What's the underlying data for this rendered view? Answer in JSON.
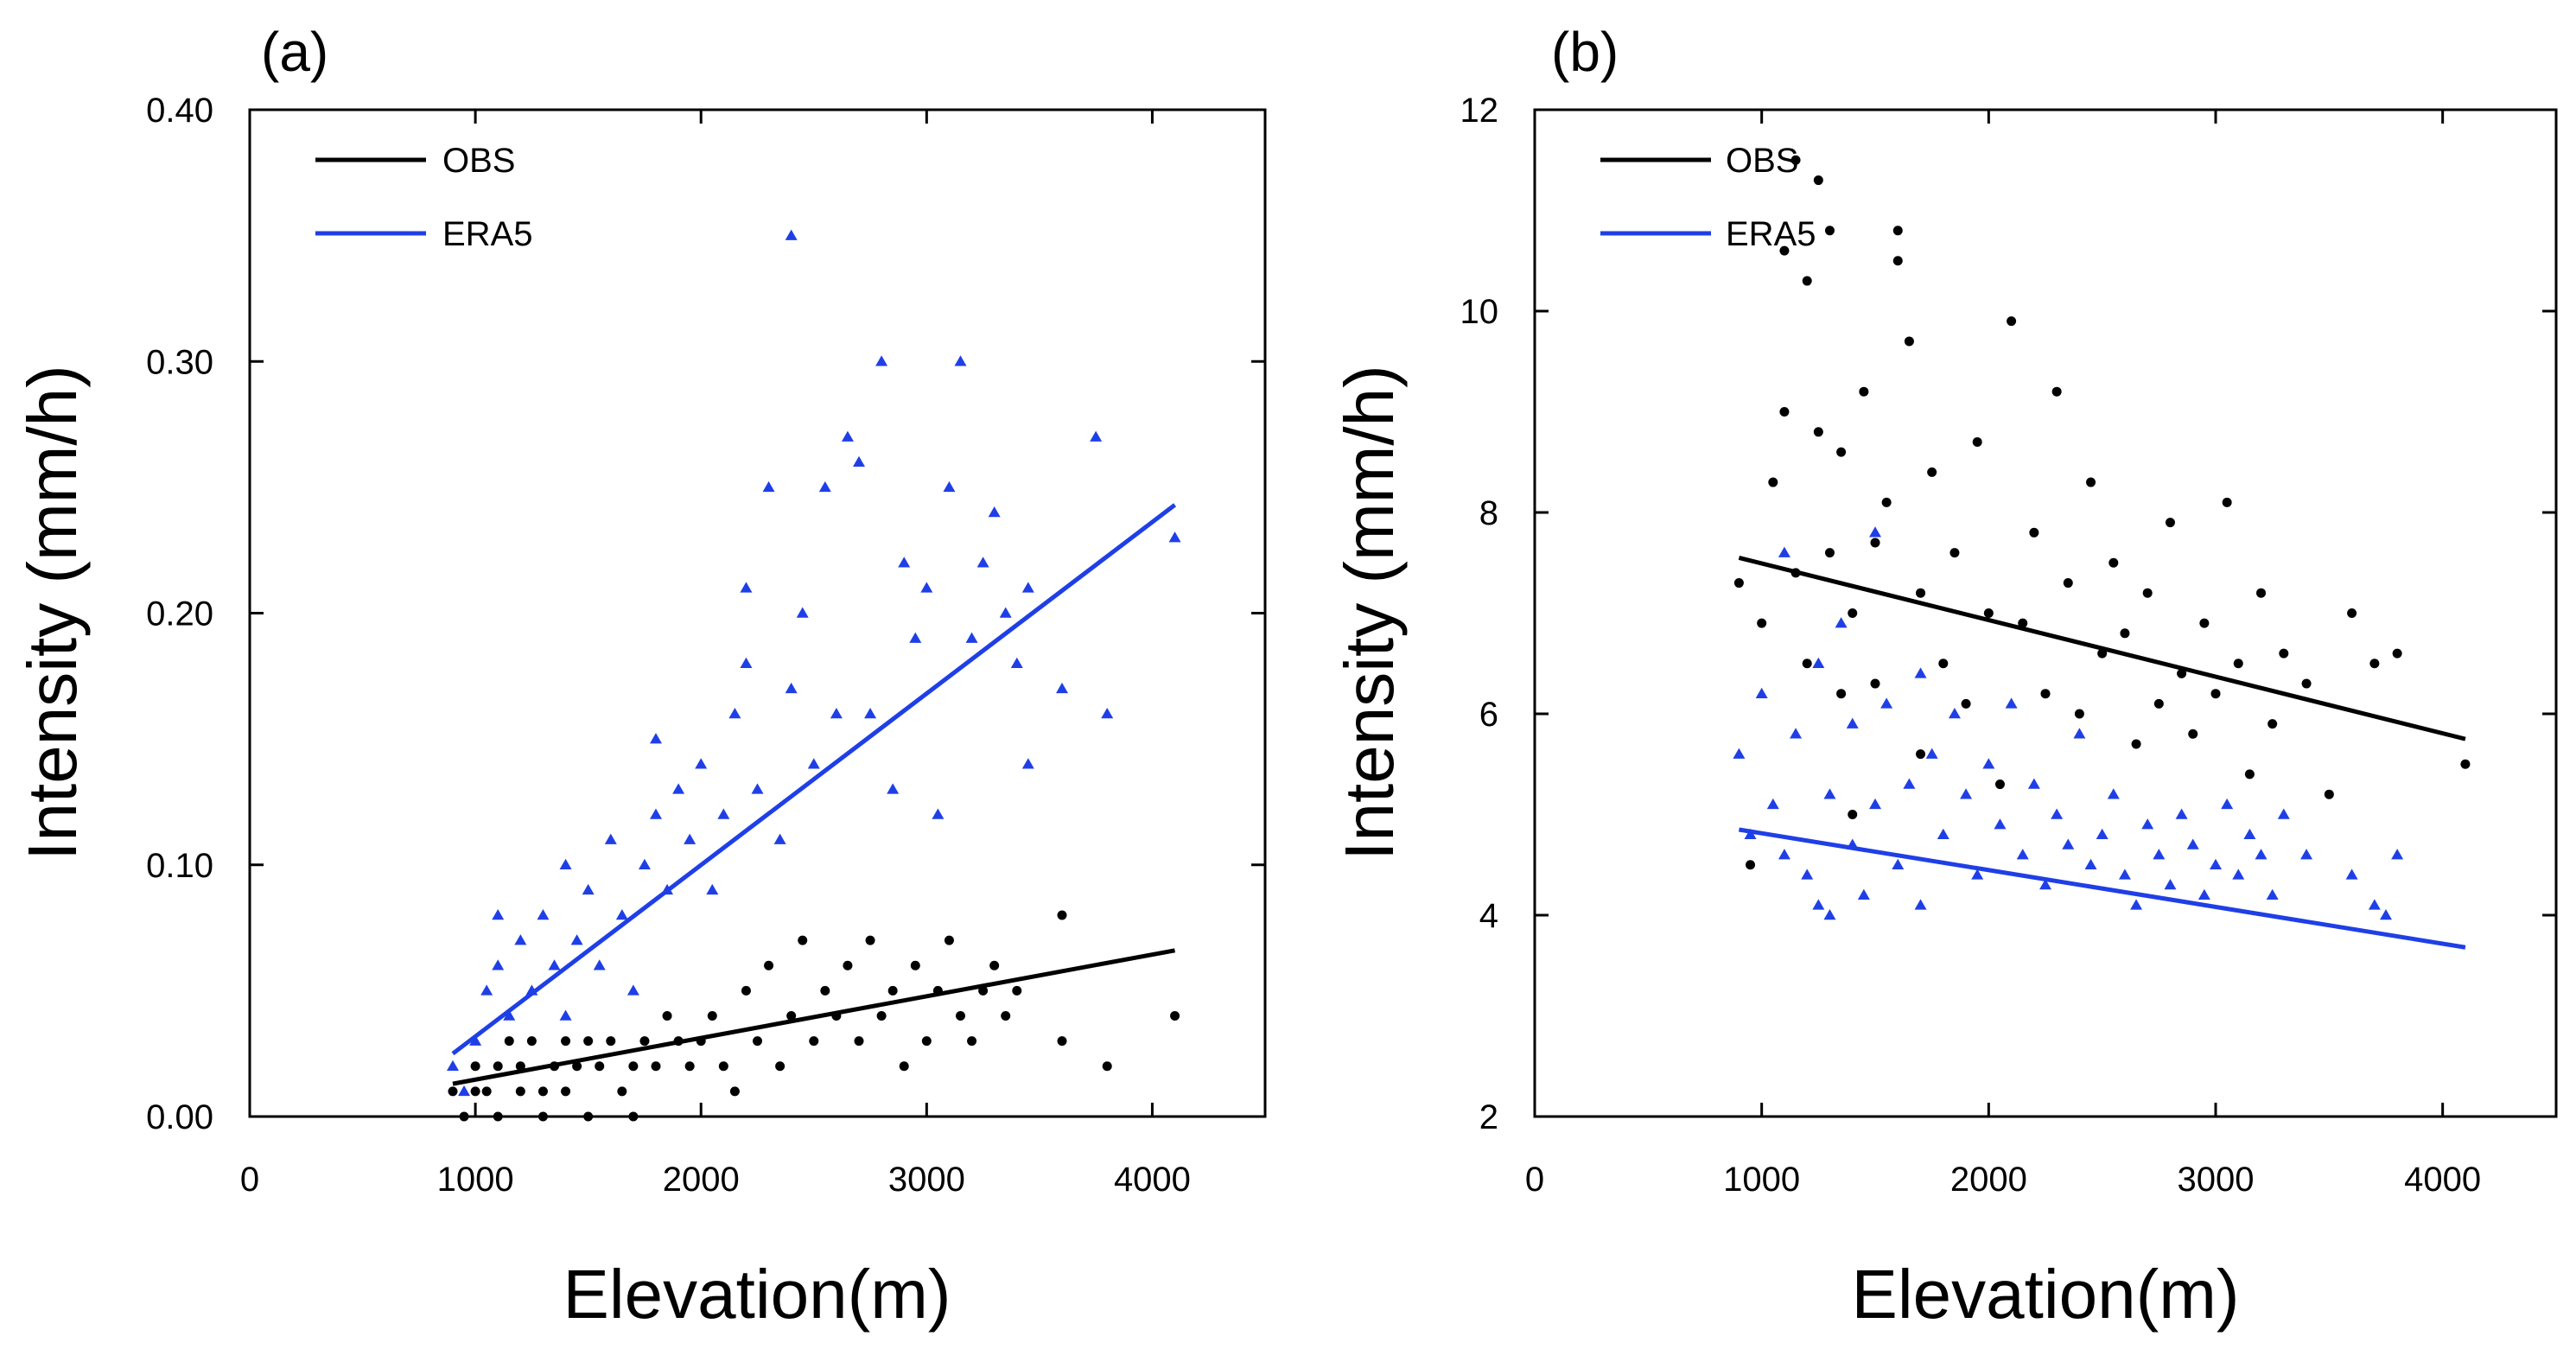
{
  "figure": {
    "description": "Scatter plots of precipitation intensity versus station elevation"
  },
  "chart_data": [
    {
      "type": "scatter",
      "panel_label": "(a)",
      "xlabel": "Elevation(m)",
      "ylabel": "Intensity (mm/h)",
      "xlim": [
        0,
        4500
      ],
      "ylim": [
        0,
        0.4
      ],
      "xticks": [
        0,
        1000,
        2000,
        3000,
        4000
      ],
      "xtick_labels": [
        "0",
        "1000",
        "2000",
        "3000",
        "4000"
      ],
      "yticks": [
        0,
        0.1,
        0.2,
        0.3,
        0.4
      ],
      "ytick_labels": [
        "0.00",
        "0.10",
        "0.20",
        "0.30",
        "0.40"
      ],
      "legend_position": "top-left",
      "grid": false,
      "series": [
        {
          "name": "OBS",
          "color": "#000000",
          "marker": "circle",
          "trend": {
            "x": [
              900,
              4100
            ],
            "y": [
              0.013,
              0.066
            ]
          },
          "points": [
            [
              900,
              0.01
            ],
            [
              950,
              0.0
            ],
            [
              1000,
              0.01
            ],
            [
              1000,
              0.02
            ],
            [
              1050,
              0.01
            ],
            [
              1100,
              0.0
            ],
            [
              1100,
              0.02
            ],
            [
              1150,
              0.03
            ],
            [
              1200,
              0.01
            ],
            [
              1200,
              0.02
            ],
            [
              1250,
              0.03
            ],
            [
              1300,
              0.0
            ],
            [
              1300,
              0.01
            ],
            [
              1350,
              0.02
            ],
            [
              1400,
              0.03
            ],
            [
              1400,
              0.01
            ],
            [
              1450,
              0.02
            ],
            [
              1500,
              0.0
            ],
            [
              1500,
              0.03
            ],
            [
              1550,
              0.02
            ],
            [
              1600,
              0.03
            ],
            [
              1650,
              0.01
            ],
            [
              1700,
              0.02
            ],
            [
              1700,
              0.0
            ],
            [
              1750,
              0.03
            ],
            [
              1800,
              0.02
            ],
            [
              1850,
              0.04
            ],
            [
              1900,
              0.03
            ],
            [
              1950,
              0.02
            ],
            [
              2000,
              0.03
            ],
            [
              2050,
              0.04
            ],
            [
              2100,
              0.02
            ],
            [
              2150,
              0.01
            ],
            [
              2200,
              0.05
            ],
            [
              2250,
              0.03
            ],
            [
              2300,
              0.06
            ],
            [
              2350,
              0.02
            ],
            [
              2400,
              0.04
            ],
            [
              2450,
              0.07
            ],
            [
              2500,
              0.03
            ],
            [
              2550,
              0.05
            ],
            [
              2600,
              0.04
            ],
            [
              2650,
              0.06
            ],
            [
              2700,
              0.03
            ],
            [
              2750,
              0.07
            ],
            [
              2800,
              0.04
            ],
            [
              2850,
              0.05
            ],
            [
              2900,
              0.02
            ],
            [
              2950,
              0.06
            ],
            [
              3000,
              0.03
            ],
            [
              3050,
              0.05
            ],
            [
              3100,
              0.07
            ],
            [
              3150,
              0.04
            ],
            [
              3200,
              0.03
            ],
            [
              3250,
              0.05
            ],
            [
              3300,
              0.06
            ],
            [
              3350,
              0.04
            ],
            [
              3400,
              0.05
            ],
            [
              3600,
              0.08
            ],
            [
              3600,
              0.03
            ],
            [
              3800,
              0.02
            ],
            [
              4100,
              0.04
            ]
          ]
        },
        {
          "name": "ERA5",
          "color": "#1f3fe6",
          "marker": "triangle",
          "trend": {
            "x": [
              900,
              4100
            ],
            "y": [
              0.025,
              0.243
            ]
          },
          "points": [
            [
              900,
              0.02
            ],
            [
              950,
              0.01
            ],
            [
              1000,
              0.03
            ],
            [
              1050,
              0.05
            ],
            [
              1100,
              0.06
            ],
            [
              1100,
              0.08
            ],
            [
              1150,
              0.04
            ],
            [
              1200,
              0.07
            ],
            [
              1250,
              0.05
            ],
            [
              1300,
              0.08
            ],
            [
              1350,
              0.06
            ],
            [
              1400,
              0.04
            ],
            [
              1400,
              0.1
            ],
            [
              1450,
              0.07
            ],
            [
              1500,
              0.09
            ],
            [
              1550,
              0.06
            ],
            [
              1600,
              0.11
            ],
            [
              1650,
              0.08
            ],
            [
              1700,
              0.05
            ],
            [
              1750,
              0.1
            ],
            [
              1800,
              0.12
            ],
            [
              1800,
              0.15
            ],
            [
              1850,
              0.09
            ],
            [
              1900,
              0.13
            ],
            [
              1950,
              0.11
            ],
            [
              2000,
              0.14
            ],
            [
              2050,
              0.09
            ],
            [
              2100,
              0.12
            ],
            [
              2150,
              0.16
            ],
            [
              2200,
              0.21
            ],
            [
              2200,
              0.18
            ],
            [
              2250,
              0.13
            ],
            [
              2300,
              0.25
            ],
            [
              2350,
              0.11
            ],
            [
              2400,
              0.35
            ],
            [
              2400,
              0.17
            ],
            [
              2450,
              0.2
            ],
            [
              2500,
              0.14
            ],
            [
              2550,
              0.25
            ],
            [
              2600,
              0.16
            ],
            [
              2650,
              0.27
            ],
            [
              2700,
              0.26
            ],
            [
              2750,
              0.16
            ],
            [
              2800,
              0.3
            ],
            [
              2850,
              0.13
            ],
            [
              2900,
              0.22
            ],
            [
              2950,
              0.19
            ],
            [
              3000,
              0.21
            ],
            [
              3050,
              0.12
            ],
            [
              3100,
              0.25
            ],
            [
              3150,
              0.3
            ],
            [
              3200,
              0.19
            ],
            [
              3250,
              0.22
            ],
            [
              3300,
              0.24
            ],
            [
              3350,
              0.2
            ],
            [
              3400,
              0.18
            ],
            [
              3450,
              0.21
            ],
            [
              3450,
              0.14
            ],
            [
              3600,
              0.17
            ],
            [
              3750,
              0.27
            ],
            [
              3800,
              0.16
            ],
            [
              4100,
              0.23
            ]
          ]
        }
      ]
    },
    {
      "type": "scatter",
      "panel_label": "(b)",
      "xlabel": "Elevation(m)",
      "ylabel": "Intensity (mm/h)",
      "xlim": [
        0,
        4500
      ],
      "ylim": [
        2,
        12
      ],
      "xticks": [
        0,
        1000,
        2000,
        3000,
        4000
      ],
      "xtick_labels": [
        "0",
        "1000",
        "2000",
        "3000",
        "4000"
      ],
      "yticks": [
        2,
        4,
        6,
        8,
        10,
        12
      ],
      "ytick_labels": [
        "2",
        "4",
        "6",
        "8",
        "10",
        "12"
      ],
      "legend_position": "top-left",
      "grid": false,
      "series": [
        {
          "name": "OBS",
          "color": "#000000",
          "marker": "circle",
          "trend": {
            "x": [
              900,
              4100
            ],
            "y": [
              7.55,
              5.75
            ]
          },
          "points": [
            [
              900,
              7.3
            ],
            [
              950,
              4.5
            ],
            [
              1000,
              6.9
            ],
            [
              1050,
              8.3
            ],
            [
              1100,
              9.0
            ],
            [
              1100,
              10.6
            ],
            [
              1150,
              7.4
            ],
            [
              1150,
              11.5
            ],
            [
              1200,
              6.5
            ],
            [
              1200,
              10.3
            ],
            [
              1250,
              8.8
            ],
            [
              1250,
              11.3
            ],
            [
              1300,
              7.6
            ],
            [
              1300,
              10.8
            ],
            [
              1350,
              6.2
            ],
            [
              1350,
              8.6
            ],
            [
              1400,
              7.0
            ],
            [
              1400,
              5.0
            ],
            [
              1450,
              9.2
            ],
            [
              1500,
              7.7
            ],
            [
              1500,
              6.3
            ],
            [
              1550,
              8.1
            ],
            [
              1600,
              10.8
            ],
            [
              1600,
              10.5
            ],
            [
              1650,
              9.7
            ],
            [
              1700,
              7.2
            ],
            [
              1700,
              5.6
            ],
            [
              1750,
              8.4
            ],
            [
              1800,
              6.5
            ],
            [
              1850,
              7.6
            ],
            [
              1900,
              6.1
            ],
            [
              1950,
              8.7
            ],
            [
              2000,
              7.0
            ],
            [
              2050,
              5.3
            ],
            [
              2100,
              9.9
            ],
            [
              2150,
              6.9
            ],
            [
              2200,
              7.8
            ],
            [
              2250,
              6.2
            ],
            [
              2300,
              9.2
            ],
            [
              2350,
              7.3
            ],
            [
              2400,
              6.0
            ],
            [
              2450,
              8.3
            ],
            [
              2500,
              6.6
            ],
            [
              2550,
              7.5
            ],
            [
              2600,
              6.8
            ],
            [
              2650,
              5.7
            ],
            [
              2700,
              7.2
            ],
            [
              2750,
              6.1
            ],
            [
              2800,
              7.9
            ],
            [
              2850,
              6.4
            ],
            [
              2900,
              5.8
            ],
            [
              2950,
              6.9
            ],
            [
              3000,
              6.2
            ],
            [
              3050,
              8.1
            ],
            [
              3100,
              6.5
            ],
            [
              3150,
              5.4
            ],
            [
              3200,
              7.2
            ],
            [
              3250,
              5.9
            ],
            [
              3300,
              6.6
            ],
            [
              3400,
              6.3
            ],
            [
              3500,
              5.2
            ],
            [
              3600,
              7.0
            ],
            [
              3700,
              6.5
            ],
            [
              3800,
              6.6
            ],
            [
              4100,
              5.5
            ]
          ]
        },
        {
          "name": "ERA5",
          "color": "#1f3fe6",
          "marker": "triangle",
          "trend": {
            "x": [
              900,
              4100
            ],
            "y": [
              4.85,
              3.68
            ]
          },
          "points": [
            [
              900,
              5.6
            ],
            [
              950,
              4.8
            ],
            [
              1000,
              6.2
            ],
            [
              1050,
              5.1
            ],
            [
              1100,
              4.6
            ],
            [
              1100,
              7.6
            ],
            [
              1150,
              5.8
            ],
            [
              1200,
              4.4
            ],
            [
              1250,
              6.5
            ],
            [
              1250,
              4.1
            ],
            [
              1300,
              5.2
            ],
            [
              1300,
              4.0
            ],
            [
              1350,
              6.9
            ],
            [
              1400,
              4.7
            ],
            [
              1400,
              5.9
            ],
            [
              1450,
              4.2
            ],
            [
              1500,
              7.8
            ],
            [
              1500,
              5.1
            ],
            [
              1550,
              6.1
            ],
            [
              1600,
              4.5
            ],
            [
              1650,
              5.3
            ],
            [
              1700,
              6.4
            ],
            [
              1700,
              4.1
            ],
            [
              1750,
              5.6
            ],
            [
              1800,
              4.8
            ],
            [
              1850,
              6.0
            ],
            [
              1900,
              5.2
            ],
            [
              1950,
              4.4
            ],
            [
              2000,
              5.5
            ],
            [
              2050,
              4.9
            ],
            [
              2100,
              6.1
            ],
            [
              2150,
              4.6
            ],
            [
              2200,
              5.3
            ],
            [
              2250,
              4.3
            ],
            [
              2300,
              5.0
            ],
            [
              2350,
              4.7
            ],
            [
              2400,
              5.8
            ],
            [
              2450,
              4.5
            ],
            [
              2500,
              4.8
            ],
            [
              2550,
              5.2
            ],
            [
              2600,
              4.4
            ],
            [
              2650,
              4.1
            ],
            [
              2700,
              4.9
            ],
            [
              2750,
              4.6
            ],
            [
              2800,
              4.3
            ],
            [
              2850,
              5.0
            ],
            [
              2900,
              4.7
            ],
            [
              2950,
              4.2
            ],
            [
              3000,
              4.5
            ],
            [
              3050,
              5.1
            ],
            [
              3100,
              4.4
            ],
            [
              3150,
              4.8
            ],
            [
              3200,
              4.6
            ],
            [
              3250,
              4.2
            ],
            [
              3300,
              5.0
            ],
            [
              3400,
              4.6
            ],
            [
              3600,
              4.4
            ],
            [
              3700,
              4.1
            ],
            [
              3750,
              4.0
            ],
            [
              3800,
              4.6
            ]
          ]
        }
      ]
    }
  ]
}
